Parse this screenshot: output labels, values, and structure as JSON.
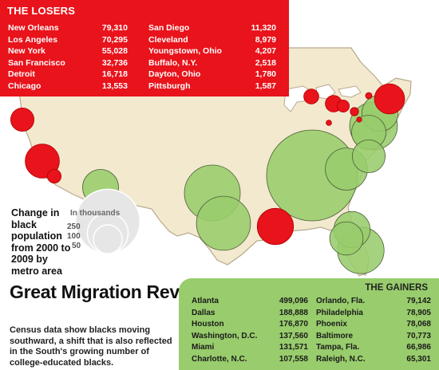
{
  "headline": "Great Migration Reverses Itself",
  "deck": "Census data show blacks moving southward, a shift that is also reflected in the South's growing number of college-educated blacks.",
  "legend": {
    "title": "Change in black population from 2000 to 2009 by metro area",
    "units": "In thousands",
    "values": [
      250,
      100,
      50
    ]
  },
  "colors": {
    "losers": "#e8131b",
    "gainers": "#98cc6c",
    "land": "#f2e9cf"
  },
  "losers": {
    "title": "THE LOSERS",
    "columns": [
      [
        {
          "city": "New Orleans",
          "value": "79,310"
        },
        {
          "city": "Los Angeles",
          "value": "70,295"
        },
        {
          "city": "New York",
          "value": "55,028"
        },
        {
          "city": "San Francisco",
          "value": "32,736"
        },
        {
          "city": "Detroit",
          "value": "16,718"
        },
        {
          "city": "Chicago",
          "value": "13,553"
        }
      ],
      [
        {
          "city": "San Diego",
          "value": "11,320"
        },
        {
          "city": "Cleveland",
          "value": "8,979"
        },
        {
          "city": "Youngstown, Ohio",
          "value": "4,207"
        },
        {
          "city": "Buffalo, N.Y.",
          "value": "2,518"
        },
        {
          "city": "Dayton, Ohio",
          "value": "1,780"
        },
        {
          "city": "Pittsburgh",
          "value": "1,587"
        }
      ]
    ]
  },
  "gainers": {
    "title": "THE GAINERS",
    "columns": [
      [
        {
          "city": "Atlanta",
          "value": "499,096"
        },
        {
          "city": "Dallas",
          "value": "188,888"
        },
        {
          "city": "Houston",
          "value": "176,870"
        },
        {
          "city": "Washington, D.C.",
          "value": "137,560"
        },
        {
          "city": "Miami",
          "value": "131,571"
        },
        {
          "city": "Charlotte, N.C.",
          "value": "107,558"
        }
      ],
      [
        {
          "city": "Orlando, Fla.",
          "value": "79,142"
        },
        {
          "city": "Philadelphia",
          "value": "78,905"
        },
        {
          "city": "Phoenix",
          "value": "78,068"
        },
        {
          "city": "Baltimore",
          "value": "70,773"
        },
        {
          "city": "Tampa, Fla.",
          "value": "66,986"
        },
        {
          "city": "Raleigh, N.C.",
          "value": "65,301"
        }
      ]
    ]
  }
}
